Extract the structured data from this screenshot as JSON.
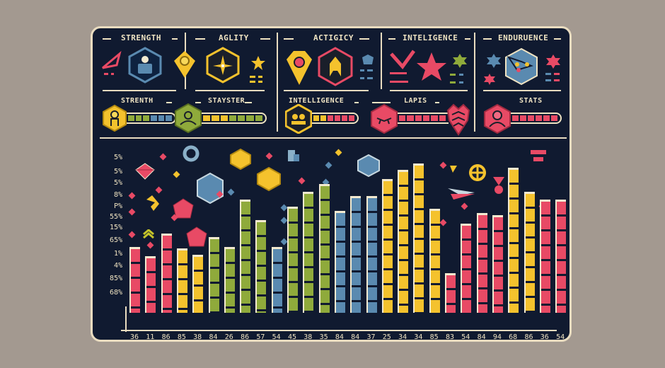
{
  "colors": {
    "background": "#a39990",
    "panel": "#101a30",
    "border": "#e9dcc0",
    "red": "#e84a65",
    "yellow": "#f4c22d",
    "green": "#8faa3b",
    "blue": "#5a8ab0",
    "text": "#efe3c2"
  },
  "header": {
    "sections": [
      {
        "title": "STRENGTH",
        "icon": "person-hexagon-icon"
      },
      {
        "title": "AGLITY",
        "icon": "star-compass-hexagon-icon"
      },
      {
        "title": "ACTIGICY",
        "icon": "warrior-hexagon-icon"
      },
      {
        "title": "INTELIGENCE",
        "icon": "star-icon"
      },
      {
        "title": "ENDURUENCE",
        "icon": "network-hexagon-icon"
      }
    ],
    "progress": [
      {
        "title": "STRENTH",
        "icon": "person-badge-icon"
      },
      {
        "title": "STAYSTER",
        "icon": "user-hexagon-icon"
      },
      {
        "title": "INTELLIGENCE",
        "icon": "group-hexagon-icon"
      },
      {
        "title": "LAPIS",
        "icon": "mask-hexagon-icon"
      },
      {
        "title": "STATS",
        "icon": "avatar-hexagon-icon"
      }
    ]
  },
  "chart_data": {
    "type": "bar",
    "title": "",
    "xlabel": "",
    "ylabel": "",
    "y_tick_labels": [
      "5%",
      "5%",
      "5%",
      "8%",
      "P%",
      "55%",
      "15%",
      "65%",
      "1%",
      "4%",
      "85%",
      "68%"
    ],
    "categories": [
      "36",
      "11",
      "86",
      "85",
      "38",
      "84",
      "26",
      "86",
      "57",
      "54",
      "45",
      "38",
      "35",
      "84",
      "84",
      "37",
      "25",
      "34",
      "34",
      "85",
      "83",
      "54",
      "84",
      "94",
      "68",
      "86",
      "36",
      "54"
    ],
    "values": [
      58,
      50,
      70,
      57,
      51,
      67,
      58,
      100,
      82,
      58,
      94,
      107,
      114,
      90,
      103,
      103,
      118,
      126,
      132,
      92,
      35,
      79,
      88,
      86,
      128,
      107,
      100,
      100
    ],
    "bar_colors": [
      "red",
      "red",
      "red",
      "yellow",
      "yellow",
      "green",
      "green",
      "green",
      "green",
      "blue",
      "green",
      "green",
      "green",
      "blue",
      "blue",
      "blue",
      "yellow",
      "yellow",
      "yellow",
      "yellow",
      "red",
      "red",
      "red",
      "red",
      "yellow",
      "yellow",
      "red",
      "red"
    ],
    "ylim": [
      0,
      140
    ],
    "grid": false,
    "legend": "none"
  }
}
